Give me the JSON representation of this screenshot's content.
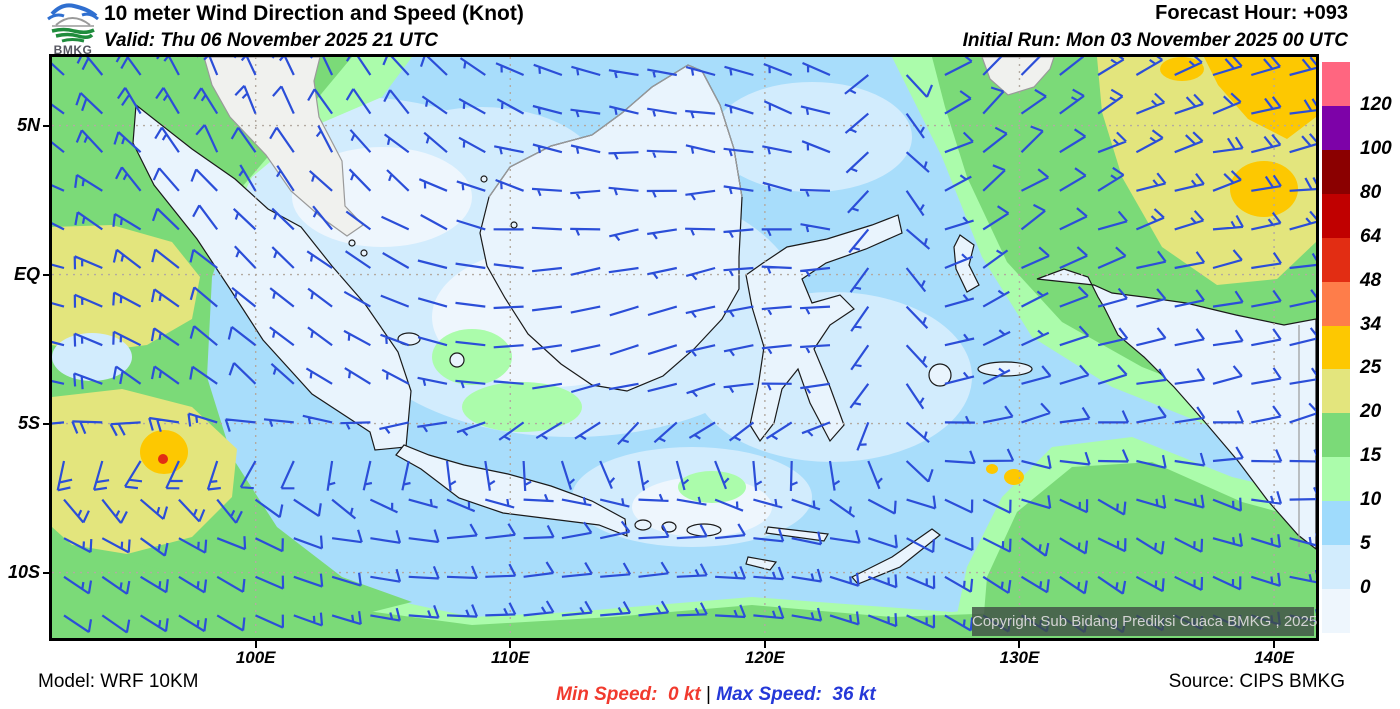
{
  "header": {
    "title": "10 meter Wind Direction and Speed (Knot)",
    "valid": "Valid: Thu 06 November 2025 21 UTC",
    "forecast_hour": "Forecast Hour: +093",
    "initial_run": "Initial Run: Mon 03 November 2025 00 UTC",
    "logo_text": "BMKG"
  },
  "map": {
    "copyright": "Copyright Sub Bidang Prediksi Cuaca BMKG , 2025",
    "barb_color": "#2b4ed8",
    "gridline_color": "#b3aaa1",
    "lat_ticks": [
      {
        "label": "5N",
        "lat": 5
      },
      {
        "label": "EQ",
        "lat": 0
      },
      {
        "label": "5S",
        "lat": -5
      },
      {
        "label": "10S",
        "lat": -10
      }
    ],
    "lon_ticks": [
      {
        "label": "100E",
        "lon": 100
      },
      {
        "label": "110E",
        "lon": 110
      },
      {
        "label": "120E",
        "lon": 120
      },
      {
        "label": "130E",
        "lon": 130
      },
      {
        "label": "140E",
        "lon": 140
      }
    ]
  },
  "legend": {
    "labels_top_to_bottom": [
      "120",
      "100",
      "80",
      "64",
      "48",
      "34",
      "25",
      "20",
      "15",
      "10",
      "5",
      "0"
    ],
    "colors_top_to_bottom": [
      "#ff6680",
      "#7d02a8",
      "#8b0000",
      "#c00000",
      "#e22d13",
      "#fe7d4a",
      "#fdc801",
      "#e3e57d",
      "#7bda78",
      "#abfcab",
      "#9fdbfc",
      "#d2ecfd",
      "#eef6fd"
    ]
  },
  "footer": {
    "model": "Model: WRF 10KM",
    "min_speed": "Min Speed:  0 kt ",
    "separator": "| ",
    "max_speed": "Max Speed:  36 kt",
    "source": "Source: CIPS BMKG"
  }
}
